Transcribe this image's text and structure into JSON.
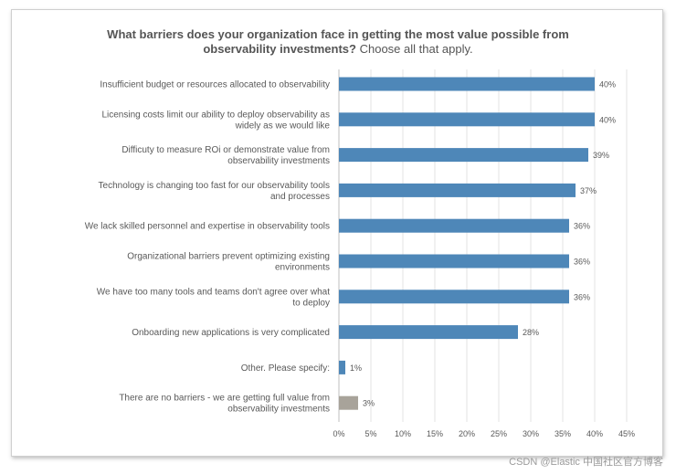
{
  "chart_data": {
    "type": "bar",
    "orientation": "horizontal",
    "title_bold": "What barriers does your organization face in getting the most value possible from",
    "title_bold_2": "observability investments?",
    "title_regular": "Choose all that apply.",
    "categories": [
      [
        "Insufficient budget or resources allocated to observability"
      ],
      [
        "Licensing costs limit our ability to deploy observability as",
        "widely as we would like"
      ],
      [
        "Difficuty to measure ROi or demonstrate value from",
        "observability investments"
      ],
      [
        "Technology is changing too fast for our observability tools",
        "and processes"
      ],
      [
        "We lack skilled personnel and expertise in observability tools"
      ],
      [
        "Organizational barriers prevent optimizing existing",
        "environments"
      ],
      [
        "We have too many tools and teams don't agree over what",
        "to deploy"
      ],
      [
        "Onboarding new applications is very complicated"
      ],
      [
        "Other. Please specify:"
      ],
      [
        "There are no barriers - we are getting full value from",
        "observability investments"
      ]
    ],
    "values": [
      40,
      40,
      39,
      37,
      36,
      36,
      36,
      28,
      1,
      3
    ],
    "value_labels": [
      "40%",
      "40%",
      "39%",
      "37%",
      "36%",
      "36%",
      "36%",
      "28%",
      "1%",
      "3%"
    ],
    "bar_colors": [
      "#4e87b8",
      "#4e87b8",
      "#4e87b8",
      "#4e87b8",
      "#4e87b8",
      "#4e87b8",
      "#4e87b8",
      "#4e87b8",
      "#4e87b8",
      "#a8a39a"
    ],
    "xlim": [
      0,
      45
    ],
    "xticks": [
      0,
      5,
      10,
      15,
      20,
      25,
      30,
      35,
      40,
      45
    ],
    "xtick_labels": [
      "0%",
      "5%",
      "10%",
      "15%",
      "20%",
      "25%",
      "30%",
      "35%",
      "40%",
      "45%"
    ],
    "grid": true,
    "xlabel": "",
    "ylabel": ""
  },
  "watermark": "CSDN @Elastic 中国社区官方博客"
}
